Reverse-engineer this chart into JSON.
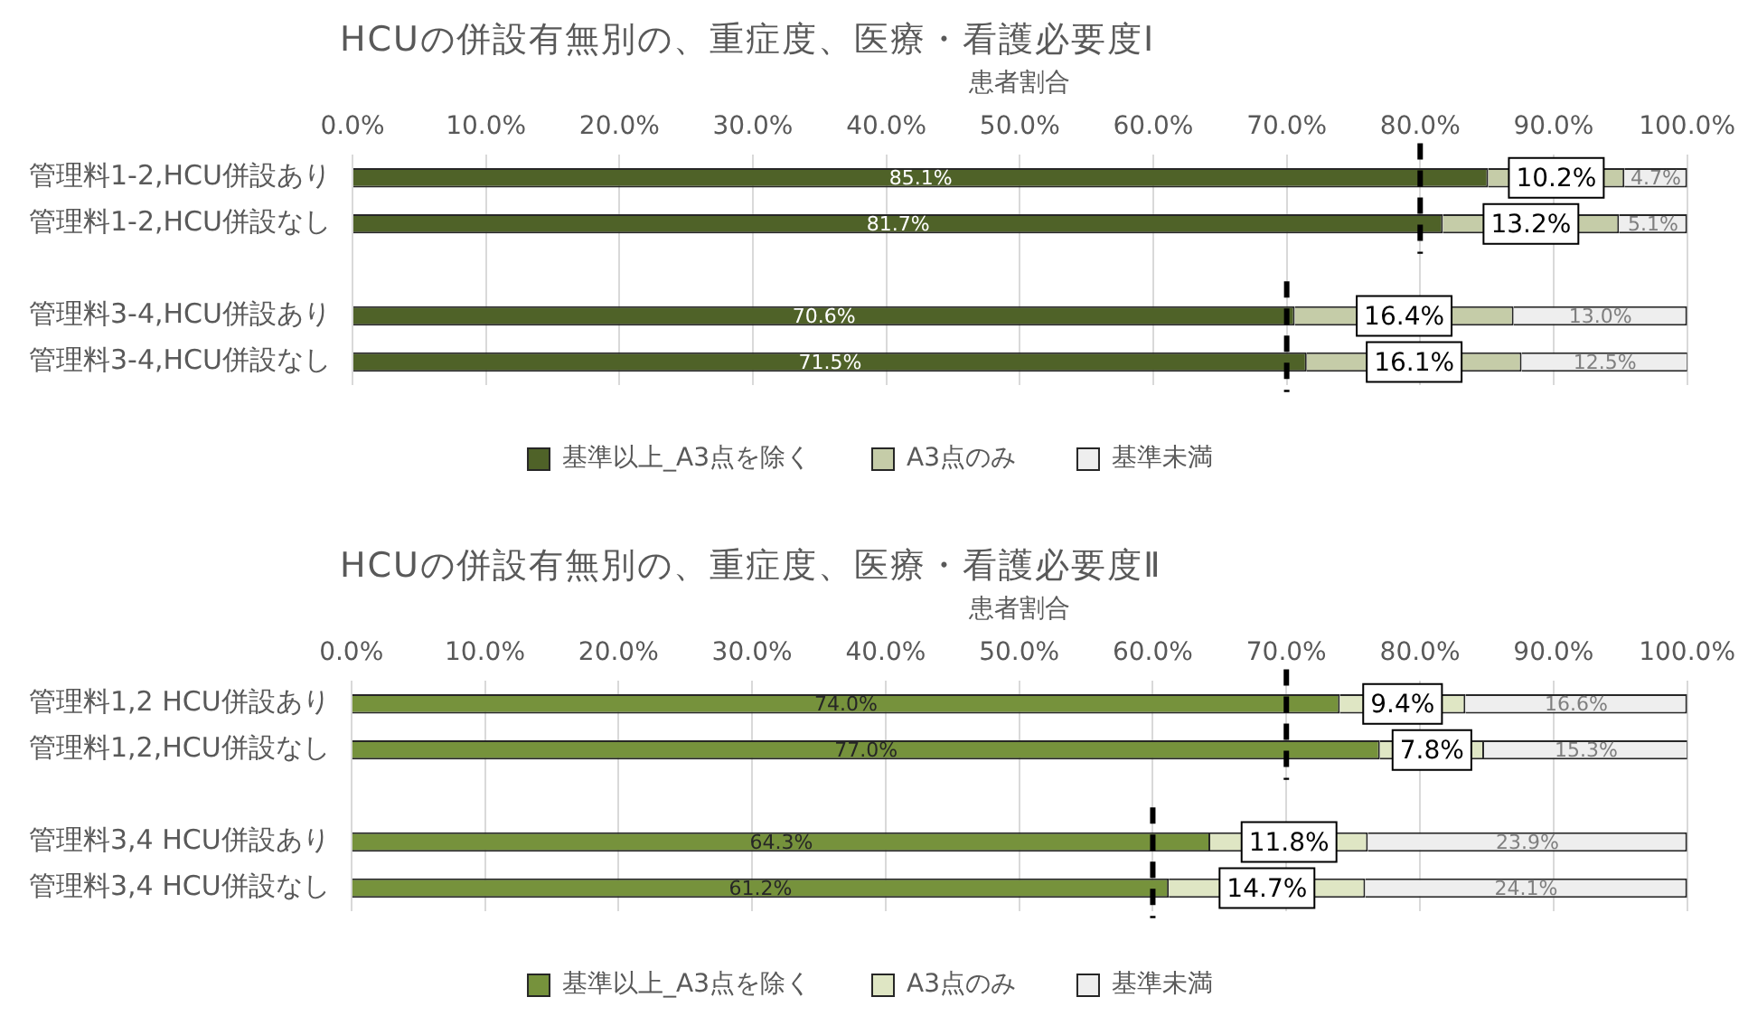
{
  "chart_data": [
    {
      "type": "bar",
      "orientation": "horizontal",
      "stacked": true,
      "title": "HCUの併設有無別の、重症度、医療・看護必要度Ⅰ",
      "xlabel": "患者割合",
      "categories": [
        "管理料1-2,HCU併設あり",
        "管理料1-2,HCU併設なし",
        null,
        "管理料3-4,HCU併設あり",
        "管理料3-4,HCU併設なし"
      ],
      "series": [
        {
          "name": "基準以上_A3点を除く",
          "color": "#4f6228",
          "values": [
            85.1,
            81.7,
            null,
            70.6,
            71.5
          ],
          "value_labels": [
            "85.1%",
            "81.7%",
            null,
            "70.6%",
            "71.5%"
          ]
        },
        {
          "name": "A3点のみ",
          "color": "#c5cca8",
          "values": [
            10.2,
            13.2,
            null,
            16.4,
            16.1
          ],
          "value_labels": [
            "10.2%",
            "13.2%",
            null,
            "16.4%",
            "16.1%"
          ]
        },
        {
          "name": "基準未満",
          "color": "#eeeeee",
          "values": [
            4.7,
            5.1,
            null,
            13.0,
            12.5
          ],
          "value_labels": [
            "4.7%",
            "5.1%",
            null,
            "13.0%",
            "12.5%"
          ]
        }
      ],
      "xlim": [
        0,
        100
      ],
      "xticks": [
        {
          "value": 0,
          "label": "0.0%"
        },
        {
          "value": 10,
          "label": "10.0%"
        },
        {
          "value": 20,
          "label": "20.0%"
        },
        {
          "value": 30,
          "label": "30.0%"
        },
        {
          "value": 40,
          "label": "40.0%"
        },
        {
          "value": 50,
          "label": "50.0%"
        },
        {
          "value": 60,
          "label": "60.0%"
        },
        {
          "value": 70,
          "label": "70.0%"
        },
        {
          "value": 80,
          "label": "80.0%"
        },
        {
          "value": 90,
          "label": "90.0%"
        },
        {
          "value": 100,
          "label": "100.0%"
        }
      ],
      "grid": "x",
      "legend": "bottom",
      "ref_lines": [
        {
          "axis": "x",
          "value": 80,
          "color": "#000000",
          "line_style": "dashed"
        },
        {
          "axis": "x",
          "value": 70,
          "color": "#000000",
          "line_style": "dashed"
        }
      ]
    },
    {
      "type": "bar",
      "orientation": "horizontal",
      "stacked": true,
      "title": "HCUの併設有無別の、重症度、医療・看護必要度Ⅱ",
      "xlabel": "患者割合",
      "categories": [
        "管理料1,2 HCU併設あり",
        "管理料1,2,HCU併設なし",
        null,
        "管理料3,4 HCU併設あり",
        "管理料3,4 HCU併設なし"
      ],
      "series": [
        {
          "name": "基準以上_A3点を除く",
          "color": "#76923c",
          "values": [
            74.0,
            77.0,
            null,
            64.3,
            61.2
          ],
          "value_labels": [
            "74.0%",
            "77.0%",
            null,
            "64.3%",
            "61.2%"
          ]
        },
        {
          "name": "A3点のみ",
          "color": "#dfe6c4",
          "values": [
            9.4,
            7.8,
            null,
            11.8,
            14.7
          ],
          "value_labels": [
            "9.4%",
            "7.8%",
            null,
            "11.8%",
            "14.7%"
          ]
        },
        {
          "name": "基準未満",
          "color": "#eeeeee",
          "values": [
            16.6,
            15.3,
            null,
            23.9,
            24.1
          ],
          "value_labels": [
            "16.6%",
            "15.3%",
            null,
            "23.9%",
            "24.1%"
          ]
        }
      ],
      "xlim": [
        0,
        100
      ],
      "xticks": [
        {
          "value": 0,
          "label": "0.0%"
        },
        {
          "value": 10,
          "label": "10.0%"
        },
        {
          "value": 20,
          "label": "20.0%"
        },
        {
          "value": 30,
          "label": "30.0%"
        },
        {
          "value": 40,
          "label": "40.0%"
        },
        {
          "value": 50,
          "label": "50.0%"
        },
        {
          "value": 60,
          "label": "60.0%"
        },
        {
          "value": 70,
          "label": "70.0%"
        },
        {
          "value": 80,
          "label": "80.0%"
        },
        {
          "value": 90,
          "label": "90.0%"
        },
        {
          "value": 100,
          "label": "100.0%"
        }
      ],
      "grid": "x",
      "legend": "bottom",
      "ref_lines": [
        {
          "axis": "x",
          "value": 70,
          "color": "#000000",
          "line_style": "dashed"
        },
        {
          "axis": "x",
          "value": 60,
          "color": "#000000",
          "line_style": "dashed"
        }
      ]
    }
  ]
}
